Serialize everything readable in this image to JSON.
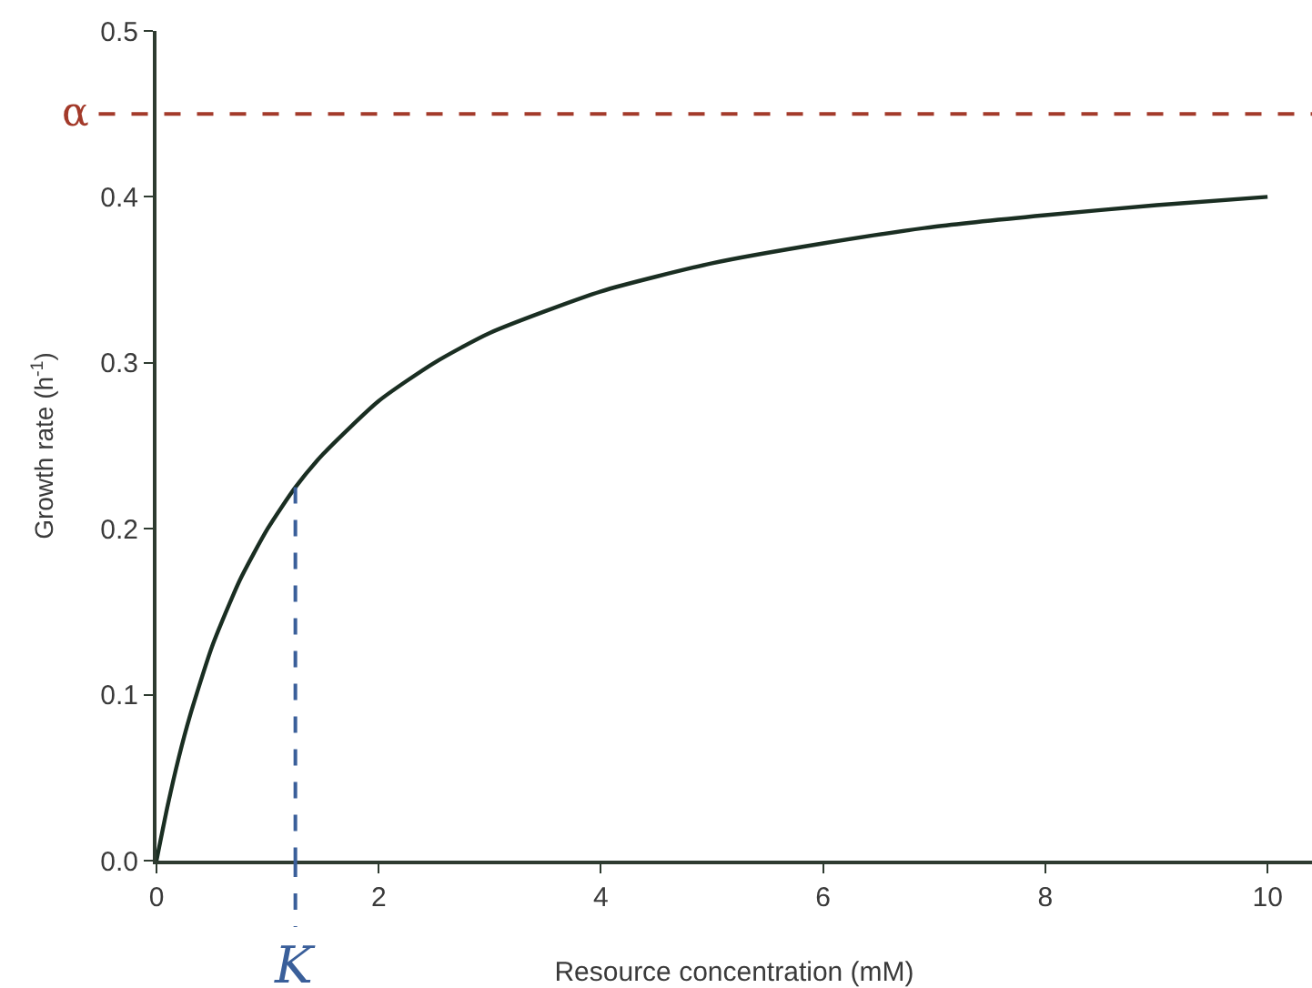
{
  "chart_data": {
    "type": "line",
    "xlabel": "Resource concentration (mM)",
    "ylabel": "Growth rate (h$^{-1}$)",
    "x": [
      0,
      0.1,
      0.2,
      0.3,
      0.5,
      0.75,
      1,
      1.25,
      1.5,
      2,
      2.5,
      3,
      4,
      5,
      6,
      7,
      8,
      9,
      10
    ],
    "series": [
      {
        "color": "#1a2e22",
        "values": [
          0,
          0.033,
          0.062,
          0.087,
          0.129,
          0.169,
          0.2,
          0.225,
          0.245,
          0.277,
          0.3,
          0.318,
          0.343,
          0.36,
          0.372,
          0.382,
          0.389,
          0.395,
          0.4
        ]
      }
    ],
    "xlim": [
      0,
      10.4
    ],
    "ylim": [
      0,
      0.5
    ],
    "xticks": [
      0,
      2,
      4,
      6,
      8,
      10
    ],
    "yticks": [
      {
        "value": 0,
        "label": "0.0"
      },
      0.1,
      0.2,
      0.3,
      0.4,
      0.5
    ],
    "ref_lines": [
      {
        "axis": "y",
        "value": 0.45,
        "label": "α",
        "color": "#a33a2a",
        "line_style": "dashed"
      },
      {
        "axis": "x",
        "value": 1.25,
        "label": "K",
        "color": "#3a5f9a",
        "line_style": "dashed"
      }
    ],
    "marker": "none",
    "line_style": "solid"
  }
}
